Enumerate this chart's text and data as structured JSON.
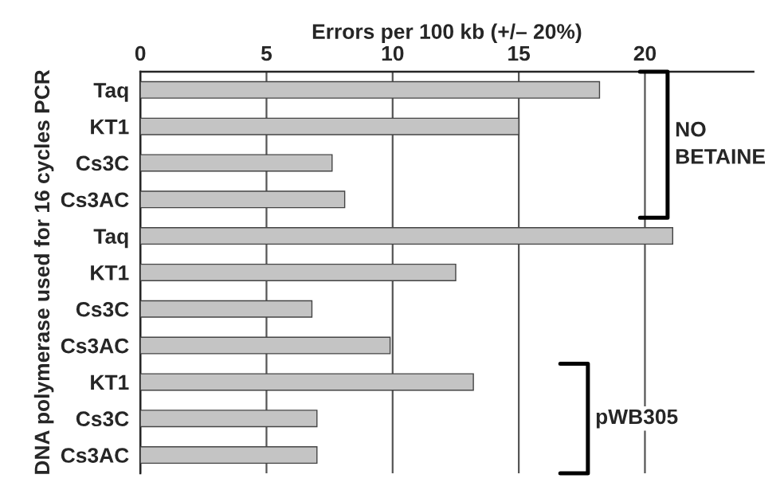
{
  "chart_data": {
    "type": "bar",
    "orientation": "horizontal",
    "xlabel": "Errors per 100 kb (+/– 20%)",
    "ylabel": "DNA polymerase used for 16 cycles PCR",
    "categories": [
      "Taq",
      "KT1",
      "Cs3C",
      "Cs3AC",
      "Taq",
      "KT1",
      "Cs3C",
      "Cs3AC",
      "KT1",
      "Cs3C",
      "Cs3AC"
    ],
    "values": [
      18.2,
      15.0,
      7.6,
      8.1,
      21.1,
      12.5,
      6.8,
      9.9,
      13.2,
      7.0,
      7.0
    ],
    "color": "#c4c4c4",
    "xlim": [
      0,
      24.3
    ],
    "xticks": [
      0,
      5,
      10,
      15,
      20
    ],
    "grid": "x",
    "annotations": [
      "NO\nBETAINE",
      "pWB305"
    ]
  }
}
